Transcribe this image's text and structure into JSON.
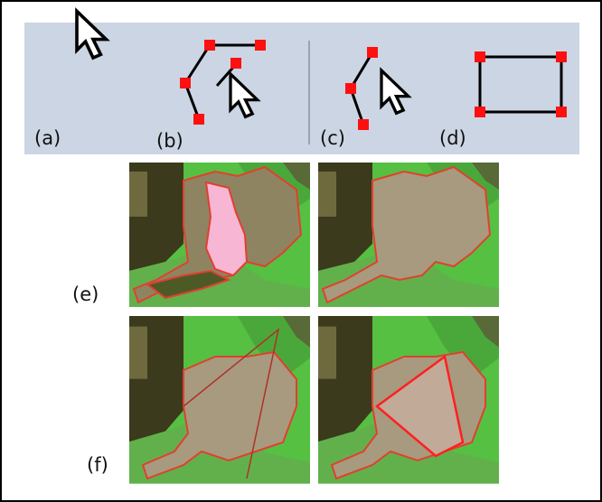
{
  "toolbar_labels": [
    "(a)",
    "(b)",
    "(c)",
    "(d)"
  ],
  "panel_labels": [
    "(e)",
    "(f)"
  ]
}
